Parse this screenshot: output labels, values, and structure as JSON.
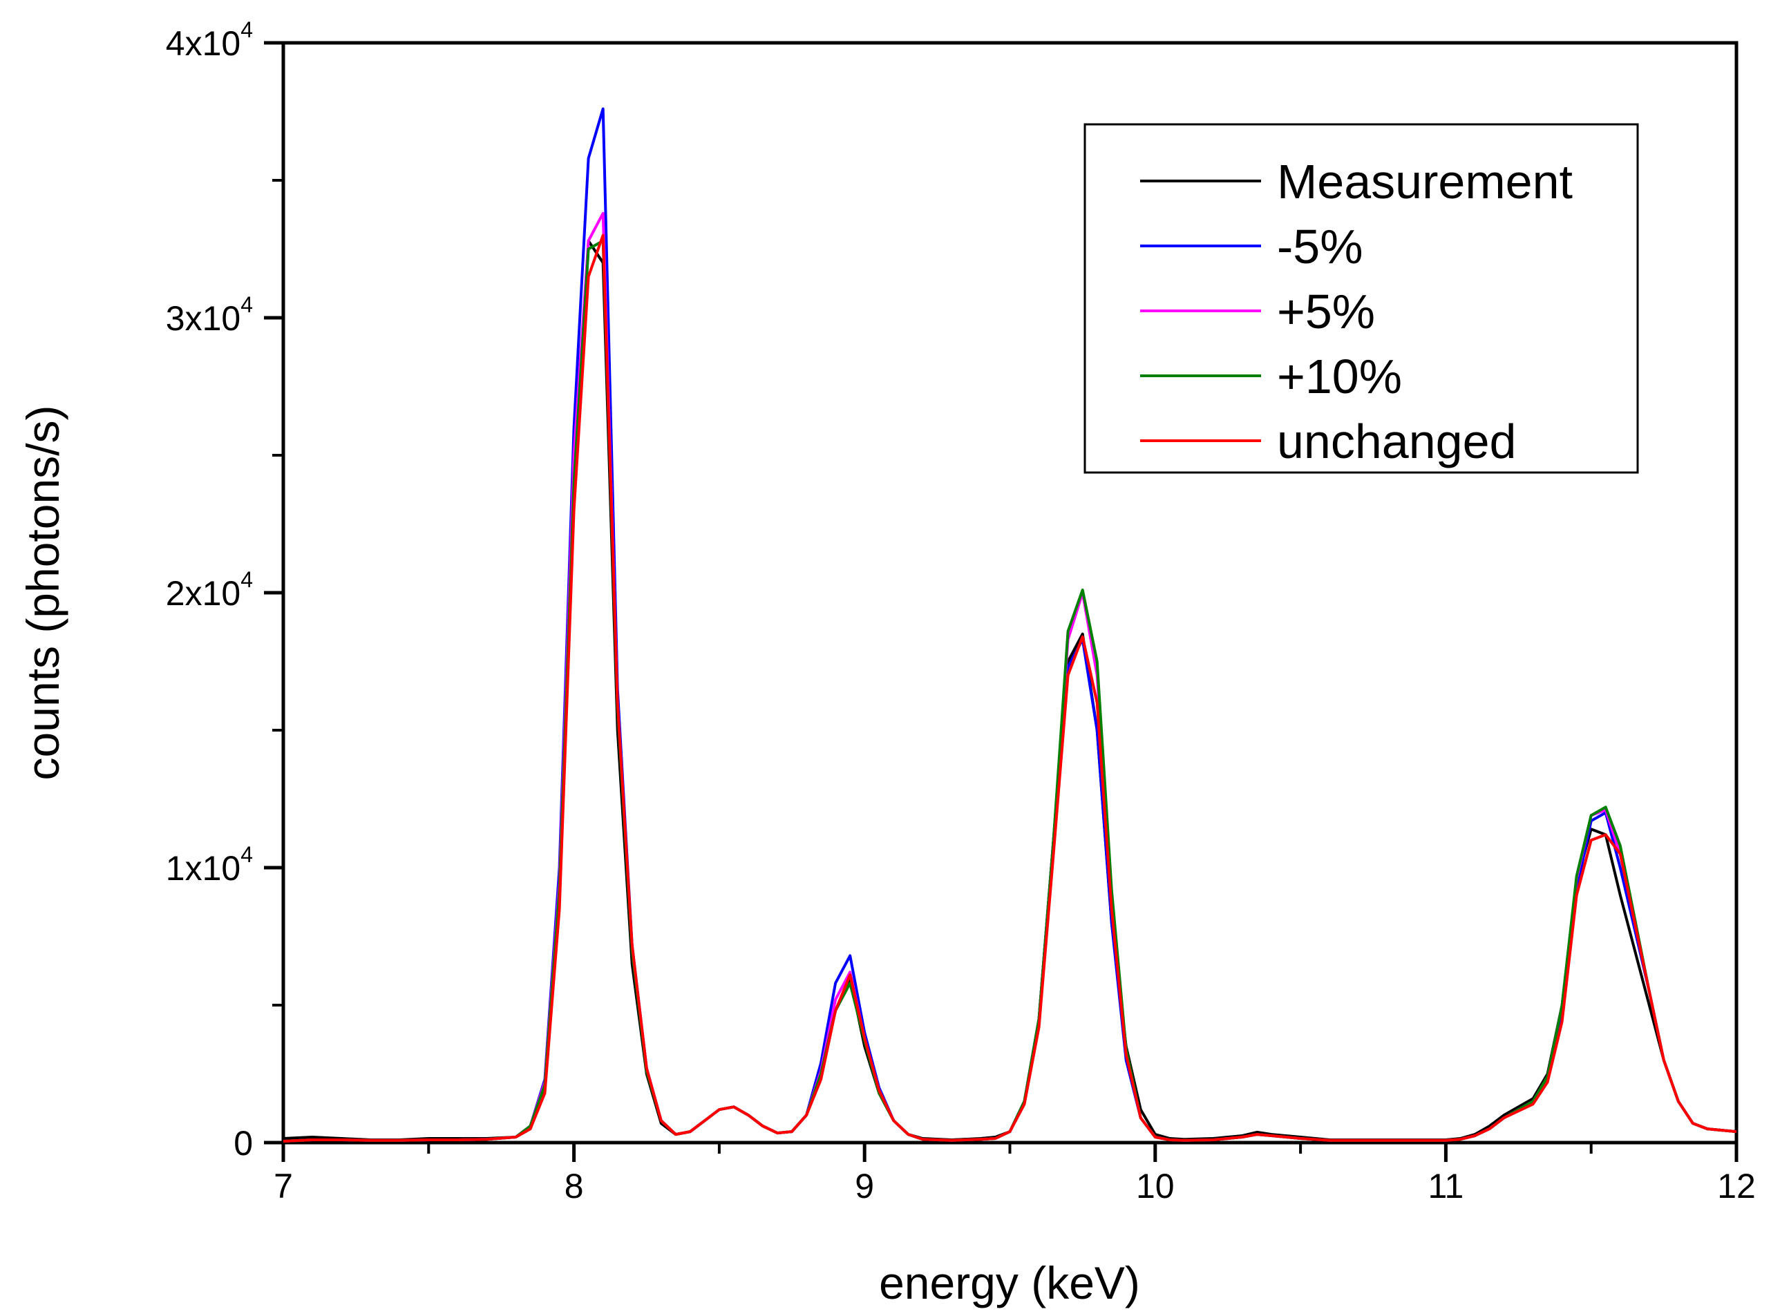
{
  "chart_data": {
    "type": "line",
    "title": "",
    "xlabel": "energy (keV)",
    "ylabel": "counts (photons/s)",
    "xlim": [
      7,
      12
    ],
    "ylim": [
      0,
      40000
    ],
    "x_ticks": [
      7,
      8,
      9,
      10,
      11,
      12
    ],
    "x_tick_labels": [
      "7",
      "8",
      "9",
      "10",
      "11",
      "12"
    ],
    "y_ticks": [
      0,
      10000,
      20000,
      30000,
      40000
    ],
    "y_tick_labels": [
      {
        "base": "0",
        "exp": ""
      },
      {
        "base": "1x10",
        "exp": "4"
      },
      {
        "base": "2x10",
        "exp": "4"
      },
      {
        "base": "3x10",
        "exp": "4"
      },
      {
        "base": "4x10",
        "exp": "4"
      }
    ],
    "grid": false,
    "legend_position": "top-right",
    "x": [
      7.0,
      7.1,
      7.2,
      7.3,
      7.4,
      7.5,
      7.6,
      7.7,
      7.8,
      7.85,
      7.9,
      7.95,
      8.0,
      8.05,
      8.1,
      8.15,
      8.2,
      8.25,
      8.3,
      8.35,
      8.4,
      8.45,
      8.5,
      8.55,
      8.6,
      8.65,
      8.7,
      8.75,
      8.8,
      8.85,
      8.9,
      8.95,
      9.0,
      9.05,
      9.1,
      9.15,
      9.2,
      9.3,
      9.4,
      9.45,
      9.5,
      9.55,
      9.6,
      9.65,
      9.7,
      9.75,
      9.8,
      9.85,
      9.9,
      9.95,
      10.0,
      10.05,
      10.1,
      10.2,
      10.3,
      10.35,
      10.4,
      10.5,
      10.6,
      10.8,
      11.0,
      11.05,
      11.1,
      11.15,
      11.2,
      11.3,
      11.35,
      11.4,
      11.45,
      11.5,
      11.55,
      11.6,
      11.7,
      11.75,
      11.8,
      11.85,
      11.9,
      12.0
    ],
    "series": [
      {
        "name": "Measurement",
        "color": "#000000",
        "values": [
          150,
          200,
          150,
          100,
          100,
          150,
          150,
          150,
          200,
          500,
          2000,
          9000,
          24000,
          32800,
          32000,
          15000,
          6500,
          2500,
          700,
          300,
          400,
          800,
          1200,
          1300,
          1000,
          600,
          350,
          400,
          1000,
          2500,
          4800,
          6000,
          3500,
          1800,
          800,
          300,
          150,
          100,
          150,
          200,
          400,
          1500,
          4500,
          11000,
          17500,
          18500,
          15000,
          8000,
          3500,
          1200,
          300,
          150,
          120,
          150,
          250,
          380,
          300,
          200,
          100,
          100,
          100,
          150,
          300,
          600,
          1000,
          1600,
          2500,
          5000,
          9500,
          11400,
          11200,
          9000,
          5000,
          3000,
          1500,
          700,
          500,
          400
        ],
        "peak_overrides": {}
      },
      {
        "name": "-5%",
        "color": "#0000ff",
        "values": [
          50,
          100,
          100,
          80,
          80,
          100,
          100,
          120,
          200,
          600,
          2300,
          10000,
          26000,
          35800,
          37600,
          16500,
          7200,
          2700,
          800,
          300,
          400,
          800,
          1200,
          1300,
          1000,
          600,
          350,
          400,
          1000,
          2900,
          5800,
          6800,
          4000,
          2000,
          800,
          300,
          120,
          80,
          120,
          150,
          400,
          1500,
          4500,
          11000,
          17300,
          18300,
          15000,
          8000,
          3000,
          900,
          200,
          100,
          80,
          100,
          200,
          300,
          250,
          150,
          80,
          80,
          80,
          120,
          250,
          500,
          900,
          1500,
          2300,
          4800,
          9200,
          11700,
          12000,
          10000,
          5500,
          3000,
          1500,
          700,
          500,
          400
        ],
        "peak_overrides": {}
      },
      {
        "name": "+5%",
        "color": "#ff00ff",
        "values": [
          50,
          100,
          100,
          80,
          80,
          100,
          100,
          120,
          200,
          600,
          2200,
          9500,
          25000,
          32800,
          33800,
          16000,
          7100,
          2700,
          800,
          300,
          400,
          800,
          1200,
          1300,
          1000,
          600,
          350,
          400,
          1000,
          2600,
          5200,
          6200,
          3800,
          1900,
          800,
          300,
          120,
          80,
          120,
          150,
          400,
          1500,
          4500,
          11000,
          18300,
          20000,
          17000,
          9000,
          3300,
          900,
          200,
          100,
          80,
          100,
          200,
          300,
          250,
          150,
          80,
          80,
          80,
          120,
          250,
          500,
          900,
          1500,
          2400,
          5000,
          9600,
          11900,
          12100,
          10500,
          5500,
          3000,
          1500,
          700,
          500,
          400
        ],
        "peak_overrides": {}
      },
      {
        "name": "+10%",
        "color": "#008000",
        "values": [
          50,
          100,
          100,
          80,
          80,
          100,
          100,
          120,
          200,
          600,
          2100,
          9200,
          24000,
          32500,
          32800,
          15800,
          7000,
          2600,
          800,
          300,
          400,
          800,
          1200,
          1300,
          1000,
          600,
          350,
          400,
          1000,
          2500,
          4800,
          5800,
          3700,
          1800,
          800,
          300,
          120,
          80,
          120,
          150,
          400,
          1500,
          4500,
          11000,
          18600,
          20100,
          17500,
          9200,
          3400,
          900,
          200,
          100,
          80,
          100,
          200,
          300,
          250,
          150,
          80,
          80,
          80,
          120,
          250,
          500,
          900,
          1500,
          2400,
          5000,
          9700,
          11900,
          12200,
          10800,
          5500,
          3000,
          1500,
          700,
          500,
          400
        ],
        "peak_overrides": {}
      },
      {
        "name": "unchanged",
        "color": "#ff0000",
        "values": [
          50,
          100,
          100,
          80,
          80,
          100,
          100,
          120,
          200,
          500,
          1800,
          8500,
          23000,
          31500,
          33000,
          16000,
          7200,
          2700,
          800,
          300,
          400,
          800,
          1200,
          1300,
          1000,
          600,
          350,
          400,
          1000,
          2300,
          4800,
          6100,
          3800,
          1900,
          800,
          300,
          120,
          80,
          120,
          150,
          400,
          1400,
          4200,
          10500,
          17000,
          18400,
          16000,
          8500,
          3200,
          900,
          200,
          100,
          80,
          100,
          200,
          300,
          250,
          150,
          80,
          80,
          80,
          120,
          250,
          500,
          900,
          1400,
          2200,
          4400,
          9000,
          11000,
          11200,
          10500,
          5500,
          3000,
          1500,
          700,
          500,
          400
        ],
        "peak_overrides": {}
      }
    ]
  }
}
